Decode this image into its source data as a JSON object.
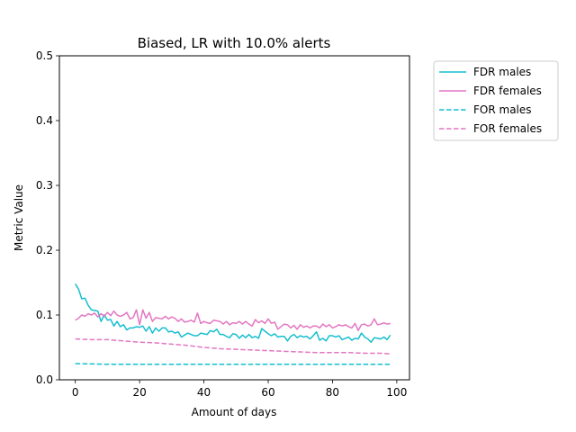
{
  "chart_data": {
    "type": "line",
    "title": "Biased, LR with 10.0% alerts",
    "xlabel": "Amount of days",
    "ylabel": "Metric Value",
    "xlim": [
      -4.95,
      103.95
    ],
    "ylim": [
      0,
      0.5
    ],
    "xticks": [
      0,
      20,
      40,
      60,
      80,
      100
    ],
    "yticks": [
      0.0,
      0.1,
      0.2,
      0.3,
      0.4,
      0.5
    ],
    "xtick_labels": [
      "0",
      "20",
      "40",
      "60",
      "80",
      "100"
    ],
    "ytick_labels": [
      "0.0",
      "0.1",
      "0.2",
      "0.3",
      "0.4",
      "0.5"
    ],
    "grid": false,
    "legend_position": "outside-top-right",
    "series": [
      {
        "name": "FDR males",
        "color": "#17becf",
        "style": "solid",
        "anchors": [
          [
            0,
            0.148
          ],
          [
            1,
            0.14
          ],
          [
            2,
            0.125
          ],
          [
            3,
            0.126
          ],
          [
            4,
            0.115
          ],
          [
            5,
            0.108
          ],
          [
            6,
            0.107
          ],
          [
            7,
            0.106
          ],
          [
            8,
            0.09
          ],
          [
            9,
            0.1
          ],
          [
            10,
            0.092
          ],
          [
            11,
            0.093
          ],
          [
            12,
            0.083
          ],
          [
            13,
            0.09
          ],
          [
            14,
            0.082
          ],
          [
            15,
            0.085
          ],
          [
            16,
            0.077
          ],
          [
            17,
            0.08
          ],
          [
            18,
            0.08
          ],
          [
            19,
            0.082
          ],
          [
            20,
            0.081
          ],
          [
            21,
            0.083
          ],
          [
            22,
            0.075
          ],
          [
            23,
            0.082
          ],
          [
            24,
            0.072
          ],
          [
            25,
            0.08
          ],
          [
            26,
            0.075
          ],
          [
            27,
            0.08
          ],
          [
            28,
            0.08
          ],
          [
            29,
            0.074
          ],
          [
            30,
            0.075
          ],
          [
            31,
            0.072
          ],
          [
            32,
            0.074
          ],
          [
            33,
            0.066
          ],
          [
            34,
            0.069
          ],
          [
            35,
            0.072
          ],
          [
            36,
            0.07
          ],
          [
            37,
            0.068
          ],
          [
            38,
            0.068
          ],
          [
            39,
            0.072
          ],
          [
            40,
            0.071
          ],
          [
            41,
            0.07
          ],
          [
            42,
            0.076
          ],
          [
            43,
            0.074
          ],
          [
            44,
            0.078
          ],
          [
            45,
            0.07
          ],
          [
            46,
            0.07
          ],
          [
            47,
            0.067
          ],
          [
            48,
            0.065
          ],
          [
            49,
            0.071
          ],
          [
            50,
            0.07
          ],
          [
            51,
            0.064
          ],
          [
            52,
            0.069
          ],
          [
            53,
            0.065
          ],
          [
            54,
            0.07
          ],
          [
            55,
            0.065
          ],
          [
            56,
            0.067
          ],
          [
            57,
            0.064
          ],
          [
            58,
            0.079
          ],
          [
            59,
            0.075
          ],
          [
            60,
            0.071
          ],
          [
            61,
            0.068
          ],
          [
            62,
            0.071
          ],
          [
            63,
            0.066
          ],
          [
            64,
            0.067
          ],
          [
            65,
            0.067
          ],
          [
            66,
            0.06
          ],
          [
            67,
            0.067
          ],
          [
            68,
            0.07
          ],
          [
            69,
            0.065
          ],
          [
            70,
            0.068
          ],
          [
            71,
            0.066
          ],
          [
            72,
            0.067
          ],
          [
            73,
            0.063
          ],
          [
            74,
            0.068
          ],
          [
            75,
            0.074
          ],
          [
            76,
            0.061
          ],
          [
            77,
            0.064
          ],
          [
            78,
            0.06
          ],
          [
            79,
            0.068
          ],
          [
            80,
            0.068
          ],
          [
            81,
            0.066
          ],
          [
            82,
            0.068
          ],
          [
            83,
            0.062
          ],
          [
            84,
            0.064
          ],
          [
            85,
            0.066
          ],
          [
            86,
            0.061
          ],
          [
            87,
            0.064
          ],
          [
            88,
            0.063
          ],
          [
            89,
            0.072
          ],
          [
            90,
            0.066
          ],
          [
            91,
            0.063
          ],
          [
            92,
            0.058
          ],
          [
            93,
            0.065
          ],
          [
            94,
            0.064
          ],
          [
            95,
            0.063
          ],
          [
            96,
            0.066
          ],
          [
            97,
            0.062
          ],
          [
            98,
            0.069
          ]
        ]
      },
      {
        "name": "FDR females",
        "color": "#e377c2",
        "style": "solid",
        "anchors": [
          [
            0,
            0.092
          ],
          [
            1,
            0.095
          ],
          [
            2,
            0.1
          ],
          [
            3,
            0.098
          ],
          [
            4,
            0.102
          ],
          [
            5,
            0.1
          ],
          [
            6,
            0.103
          ],
          [
            7,
            0.097
          ],
          [
            8,
            0.102
          ],
          [
            9,
            0.098
          ],
          [
            10,
            0.104
          ],
          [
            11,
            0.099
          ],
          [
            12,
            0.106
          ],
          [
            13,
            0.1
          ],
          [
            14,
            0.098
          ],
          [
            15,
            0.1
          ],
          [
            16,
            0.104
          ],
          [
            17,
            0.094
          ],
          [
            18,
            0.096
          ],
          [
            19,
            0.108
          ],
          [
            20,
            0.085
          ],
          [
            21,
            0.108
          ],
          [
            22,
            0.095
          ],
          [
            23,
            0.104
          ],
          [
            24,
            0.09
          ],
          [
            25,
            0.096
          ],
          [
            26,
            0.095
          ],
          [
            27,
            0.094
          ],
          [
            28,
            0.098
          ],
          [
            29,
            0.094
          ],
          [
            30,
            0.097
          ],
          [
            31,
            0.095
          ],
          [
            32,
            0.09
          ],
          [
            33,
            0.094
          ],
          [
            34,
            0.089
          ],
          [
            35,
            0.09
          ],
          [
            36,
            0.092
          ],
          [
            37,
            0.089
          ],
          [
            38,
            0.103
          ],
          [
            39,
            0.087
          ],
          [
            40,
            0.09
          ],
          [
            41,
            0.088
          ],
          [
            42,
            0.087
          ],
          [
            43,
            0.092
          ],
          [
            44,
            0.091
          ],
          [
            45,
            0.09
          ],
          [
            46,
            0.086
          ],
          [
            47,
            0.09
          ],
          [
            48,
            0.085
          ],
          [
            49,
            0.088
          ],
          [
            50,
            0.087
          ],
          [
            51,
            0.09
          ],
          [
            52,
            0.086
          ],
          [
            53,
            0.09
          ],
          [
            54,
            0.086
          ],
          [
            55,
            0.083
          ],
          [
            56,
            0.093
          ],
          [
            57,
            0.088
          ],
          [
            58,
            0.091
          ],
          [
            59,
            0.087
          ],
          [
            60,
            0.094
          ],
          [
            61,
            0.087
          ],
          [
            62,
            0.089
          ],
          [
            63,
            0.078
          ],
          [
            64,
            0.082
          ],
          [
            65,
            0.086
          ],
          [
            66,
            0.085
          ],
          [
            67,
            0.08
          ],
          [
            68,
            0.084
          ],
          [
            69,
            0.078
          ],
          [
            70,
            0.085
          ],
          [
            71,
            0.081
          ],
          [
            72,
            0.083
          ],
          [
            73,
            0.08
          ],
          [
            74,
            0.083
          ],
          [
            75,
            0.083
          ],
          [
            76,
            0.08
          ],
          [
            77,
            0.086
          ],
          [
            78,
            0.082
          ],
          [
            79,
            0.085
          ],
          [
            80,
            0.08
          ],
          [
            81,
            0.082
          ],
          [
            82,
            0.085
          ],
          [
            83,
            0.083
          ],
          [
            84,
            0.085
          ],
          [
            85,
            0.082
          ],
          [
            86,
            0.08
          ],
          [
            87,
            0.087
          ],
          [
            88,
            0.076
          ],
          [
            89,
            0.085
          ],
          [
            90,
            0.086
          ],
          [
            91,
            0.083
          ],
          [
            92,
            0.085
          ],
          [
            93,
            0.094
          ],
          [
            94,
            0.085
          ],
          [
            95,
            0.086
          ],
          [
            96,
            0.088
          ],
          [
            97,
            0.086
          ],
          [
            98,
            0.087
          ]
        ]
      },
      {
        "name": "FOR males",
        "color": "#17becf",
        "style": "dashed",
        "anchors": [
          [
            0,
            0.025
          ],
          [
            10,
            0.024
          ],
          [
            20,
            0.024
          ],
          [
            30,
            0.024
          ],
          [
            40,
            0.024
          ],
          [
            50,
            0.024
          ],
          [
            60,
            0.024
          ],
          [
            70,
            0.024
          ],
          [
            80,
            0.024
          ],
          [
            90,
            0.024
          ],
          [
            98,
            0.024
          ]
        ]
      },
      {
        "name": "FOR females",
        "color": "#e377c2",
        "style": "dashed",
        "anchors": [
          [
            0,
            0.063
          ],
          [
            5,
            0.062
          ],
          [
            10,
            0.062
          ],
          [
            15,
            0.06
          ],
          [
            20,
            0.058
          ],
          [
            25,
            0.057
          ],
          [
            30,
            0.055
          ],
          [
            35,
            0.053
          ],
          [
            40,
            0.05
          ],
          [
            45,
            0.048
          ],
          [
            50,
            0.047
          ],
          [
            55,
            0.046
          ],
          [
            60,
            0.045
          ],
          [
            65,
            0.044
          ],
          [
            70,
            0.043
          ],
          [
            75,
            0.042
          ],
          [
            80,
            0.042
          ],
          [
            85,
            0.042
          ],
          [
            90,
            0.041
          ],
          [
            95,
            0.041
          ],
          [
            98,
            0.04
          ]
        ]
      }
    ]
  }
}
